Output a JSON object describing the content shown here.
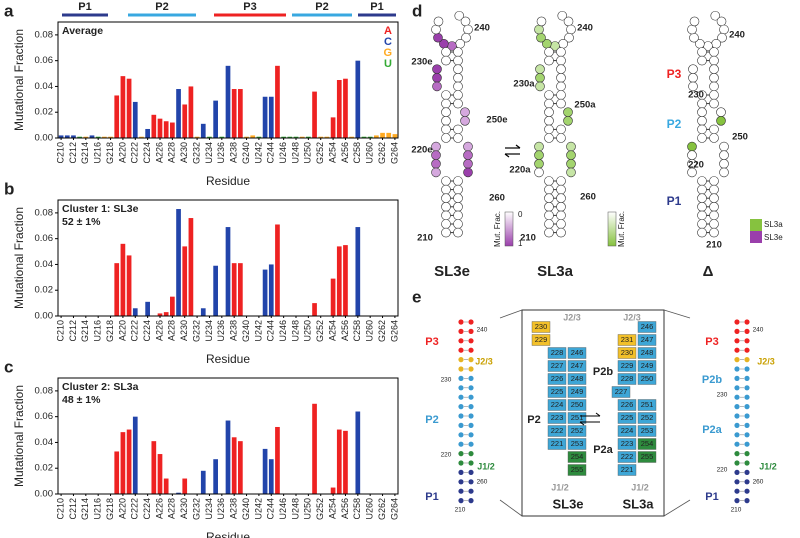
{
  "chart_data": [
    {
      "type": "bar",
      "panel": "a",
      "title": "Average",
      "ylabel": "Mutational Fraction",
      "xlabel": "Residue",
      "regions": [
        {
          "label": "P1",
          "color": "#2d3a8c"
        },
        {
          "label": "P2",
          "color": "#38a8e0"
        },
        {
          "label": "P3",
          "color": "#e22"
        },
        {
          "label": "P2",
          "color": "#38a8e0"
        },
        {
          "label": "P1",
          "color": "#2d3a8c"
        }
      ],
      "legend": [
        {
          "name": "A",
          "color": "#e22"
        },
        {
          "name": "C",
          "color": "#24a"
        },
        {
          "name": "G",
          "color": "#fa2"
        },
        {
          "name": "U",
          "color": "#3a3"
        }
      ],
      "categories": [
        "C210",
        null,
        "C212",
        null,
        "G214",
        null,
        "U216",
        null,
        "G218",
        null,
        "A220",
        null,
        "C222",
        null,
        "C224",
        null,
        "A226",
        null,
        "A228",
        null,
        "A230",
        null,
        "G232",
        null,
        "U234",
        null,
        "U236",
        null,
        "A238",
        null,
        "G240",
        null,
        "U242",
        null,
        "C244",
        null,
        "U246",
        null,
        "U248",
        null,
        "U250",
        null,
        "G252",
        null,
        "A254",
        null,
        "A256",
        null,
        "C258",
        null,
        "U260",
        null,
        "G262",
        null,
        "G264"
      ],
      "values": [
        0.002,
        0.002,
        0.002,
        0.001,
        0.001,
        0.002,
        0.001,
        0.001,
        0.001,
        0.033,
        0.048,
        0.046,
        0.028,
        0.001,
        0.007,
        0.018,
        0.015,
        0.013,
        0.012,
        0.038,
        0.026,
        0.04,
        0.001,
        0.011,
        0.001,
        0.029,
        0.001,
        0.056,
        0.038,
        0.038,
        0.001,
        0.002,
        0.001,
        0.032,
        0.032,
        0.056,
        0.001,
        0.001,
        0.001,
        0.001,
        0.001,
        0.036,
        0.001,
        0.001,
        0.016,
        0.045,
        0.046,
        0.001,
        0.06,
        0.001,
        0.001,
        0.002,
        0.004,
        0.004,
        0.003
      ],
      "colors": [
        "#24a",
        "#24a",
        "#24a",
        "#3a3",
        "#fa2",
        "#24a",
        "#3a3",
        "#fa2",
        "#fa2",
        "#e22",
        "#e22",
        "#e22",
        "#24a",
        "#fa2",
        "#24a",
        "#e22",
        "#e22",
        "#e22",
        "#e22",
        "#24a",
        "#e22",
        "#e22",
        "#fa2",
        "#24a",
        "#3a3",
        "#24a",
        "#3a3",
        "#24a",
        "#e22",
        "#e22",
        "#fa2",
        "#fa2",
        "#3a3",
        "#24a",
        "#24a",
        "#e22",
        "#3a3",
        "#3a3",
        "#3a3",
        "#fa2",
        "#3a3",
        "#e22",
        "#fa2",
        "#fa2",
        "#e22",
        "#e22",
        "#e22",
        "#fa2",
        "#24a",
        "#3a3",
        "#3a3",
        "#fa2",
        "#fa2",
        "#fa2",
        "#fa2"
      ],
      "ylim": [
        0,
        0.09
      ],
      "yticks": [
        {
          "value": 0,
          "label": "0.00"
        },
        {
          "value": 0.02,
          "label": "0.02"
        },
        {
          "value": 0.04,
          "label": "0.04"
        },
        {
          "value": 0.06,
          "label": "0.06"
        },
        {
          "value": 0.08,
          "label": "0.08"
        }
      ]
    },
    {
      "type": "bar",
      "panel": "b",
      "title": "Cluster 1: SL3e",
      "subtitle": "52 ± 1%",
      "ylabel": "Mutational Fraction",
      "xlabel": "Residue",
      "categories": [
        "C210",
        null,
        "C212",
        null,
        "G214",
        null,
        "U216",
        null,
        "G218",
        null,
        "A220",
        null,
        "C222",
        null,
        "C224",
        null,
        "A226",
        null,
        "A228",
        null,
        "A230",
        null,
        "G232",
        null,
        "U234",
        null,
        "U236",
        null,
        "A238",
        null,
        "G240",
        null,
        "U242",
        null,
        "C244",
        null,
        "U246",
        null,
        "U248",
        null,
        "U250",
        null,
        "G252",
        null,
        "A254",
        null,
        "A256",
        null,
        "C258",
        null,
        "U260",
        null,
        "G262",
        null,
        "G264"
      ],
      "values": [
        0,
        0,
        0,
        0,
        0,
        0,
        0,
        0,
        0,
        0.041,
        0.056,
        0.047,
        0.006,
        0,
        0.011,
        0,
        0.002,
        0.003,
        0.015,
        0.083,
        0.054,
        0.076,
        0,
        0.006,
        0,
        0.039,
        0,
        0.069,
        0.041,
        0.041,
        0,
        0,
        0,
        0.036,
        0.04,
        0.071,
        0,
        0,
        0,
        0,
        0,
        0.01,
        0,
        0,
        0.029,
        0.054,
        0.055,
        0,
        0.069,
        0,
        0,
        0,
        0,
        0,
        0
      ],
      "colors": [
        "#24a",
        "#24a",
        "#24a",
        "#3a3",
        "#fa2",
        "#24a",
        "#3a3",
        "#fa2",
        "#fa2",
        "#e22",
        "#e22",
        "#e22",
        "#24a",
        "#fa2",
        "#24a",
        "#e22",
        "#e22",
        "#e22",
        "#e22",
        "#24a",
        "#e22",
        "#e22",
        "#fa2",
        "#24a",
        "#3a3",
        "#24a",
        "#3a3",
        "#24a",
        "#e22",
        "#e22",
        "#fa2",
        "#fa2",
        "#3a3",
        "#24a",
        "#24a",
        "#e22",
        "#3a3",
        "#3a3",
        "#3a3",
        "#fa2",
        "#3a3",
        "#e22",
        "#fa2",
        "#fa2",
        "#e22",
        "#e22",
        "#e22",
        "#fa2",
        "#24a",
        "#3a3",
        "#3a3",
        "#fa2",
        "#fa2",
        "#fa2",
        "#fa2"
      ],
      "ylim": [
        0,
        0.09
      ],
      "yticks": [
        {
          "value": 0,
          "label": "0.00"
        },
        {
          "value": 0.02,
          "label": "0.02"
        },
        {
          "value": 0.04,
          "label": "0.04"
        },
        {
          "value": 0.06,
          "label": "0.06"
        },
        {
          "value": 0.08,
          "label": "0.08"
        }
      ]
    },
    {
      "type": "bar",
      "panel": "c",
      "title": "Cluster 2: SL3a",
      "subtitle": "48 ± 1%",
      "ylabel": "Mutational Fraction",
      "xlabel": "Residue",
      "categories": [
        "C210",
        null,
        "C212",
        null,
        "G214",
        null,
        "U216",
        null,
        "G218",
        null,
        "A220",
        null,
        "C222",
        null,
        "C224",
        null,
        "A226",
        null,
        "A228",
        null,
        "A230",
        null,
        "G232",
        null,
        "U234",
        null,
        "U236",
        null,
        "A238",
        null,
        "G240",
        null,
        "U242",
        null,
        "C244",
        null,
        "U246",
        null,
        "U248",
        null,
        "U250",
        null,
        "G252",
        null,
        "A254",
        null,
        "A256",
        null,
        "C258",
        null,
        "U260",
        null,
        "G262",
        null,
        "G264"
      ],
      "values": [
        0,
        0,
        0,
        0,
        0,
        0,
        0,
        0,
        0,
        0.033,
        0.048,
        0.05,
        0.06,
        0,
        0,
        0.041,
        0.031,
        0.012,
        0,
        0.001,
        0.012,
        0,
        0,
        0.018,
        0,
        0.027,
        0,
        0.057,
        0.044,
        0.041,
        0,
        0,
        0,
        0.035,
        0.027,
        0.052,
        0,
        0,
        0,
        0,
        0,
        0.07,
        0,
        0,
        0.005,
        0.05,
        0.049,
        0,
        0.064,
        0,
        0,
        0,
        0,
        0,
        0
      ],
      "colors": [
        "#24a",
        "#24a",
        "#24a",
        "#3a3",
        "#fa2",
        "#24a",
        "#3a3",
        "#fa2",
        "#fa2",
        "#e22",
        "#e22",
        "#e22",
        "#24a",
        "#fa2",
        "#24a",
        "#e22",
        "#e22",
        "#e22",
        "#e22",
        "#24a",
        "#e22",
        "#e22",
        "#fa2",
        "#24a",
        "#3a3",
        "#24a",
        "#3a3",
        "#24a",
        "#e22",
        "#e22",
        "#fa2",
        "#fa2",
        "#3a3",
        "#24a",
        "#24a",
        "#e22",
        "#3a3",
        "#3a3",
        "#3a3",
        "#fa2",
        "#3a3",
        "#e22",
        "#fa2",
        "#fa2",
        "#e22",
        "#e22",
        "#e22",
        "#fa2",
        "#24a",
        "#3a3",
        "#3a3",
        "#fa2",
        "#fa2",
        "#fa2",
        "#fa2"
      ],
      "ylim": [
        0,
        0.09
      ],
      "yticks": [
        {
          "value": 0,
          "label": "0.00"
        },
        {
          "value": 0.02,
          "label": "0.02"
        },
        {
          "value": 0.04,
          "label": "0.04"
        },
        {
          "value": 0.06,
          "label": "0.06"
        },
        {
          "value": 0.08,
          "label": "0.08"
        }
      ]
    }
  ],
  "panel_d": {
    "label": "d",
    "structures": [
      {
        "name": "SL3e",
        "numbers": [
          "240",
          "230e",
          "250e",
          "220e",
          "260",
          "210"
        ]
      },
      {
        "name": "SL3a",
        "numbers": [
          "240",
          "230a",
          "250a",
          "220a",
          "260",
          "210"
        ]
      },
      {
        "name": "Δ",
        "numbers": [
          "240",
          "230",
          "250",
          "220",
          "210"
        ],
        "helices": [
          "P3",
          "P2",
          "P1"
        ]
      }
    ],
    "colorbar_e": {
      "title": "Mut. Frac.",
      "ticks": [
        "0",
        "1"
      ]
    },
    "colorbar_a": {
      "title": "Mut. Frac."
    },
    "legend": [
      "SL3a",
      "SL3e"
    ]
  },
  "panel_e": {
    "label": "e",
    "left": {
      "helices": [
        "P3",
        "P2",
        "P1"
      ],
      "junctions": [
        "J2/3",
        "J1/2"
      ],
      "numbers": [
        "240",
        "230",
        "220",
        "260",
        "210"
      ]
    },
    "right": {
      "helices": [
        "P3",
        "P2b",
        "P2a",
        "P1"
      ],
      "junctions": [
        "J2/3",
        "J1/2"
      ],
      "numbers": [
        "240",
        "230",
        "220",
        "260",
        "210"
      ]
    },
    "sl3e": {
      "name": "SL3e",
      "helix": "P2",
      "junctions": [
        "J2/3",
        "J1/2"
      ],
      "rows": [
        [
          "230",
          null
        ],
        [
          "229",
          null
        ],
        [
          "228",
          "246"
        ],
        [
          "227",
          "247"
        ],
        [
          "226",
          "248"
        ],
        [
          "225",
          "249"
        ],
        [
          "224",
          "250"
        ],
        [
          "223",
          "251"
        ],
        [
          "222",
          "252"
        ],
        [
          "221",
          "253"
        ],
        [
          null,
          "254"
        ],
        [
          null,
          "255"
        ]
      ]
    },
    "sl3a": {
      "name": "SL3a",
      "helices": [
        "P2b",
        "P2a"
      ],
      "junctions": [
        "J2/3",
        "J1/2"
      ],
      "rows": [
        [
          null,
          "246"
        ],
        [
          "231",
          "247"
        ],
        [
          "230",
          "248"
        ],
        [
          "229",
          "249"
        ],
        [
          "228",
          "250"
        ],
        [
          "227",
          null
        ],
        [
          "226",
          "251"
        ],
        [
          "225",
          "252"
        ],
        [
          "224",
          "253"
        ],
        [
          "223",
          "254"
        ],
        [
          "222",
          "255"
        ],
        [
          "221",
          null
        ]
      ]
    }
  }
}
